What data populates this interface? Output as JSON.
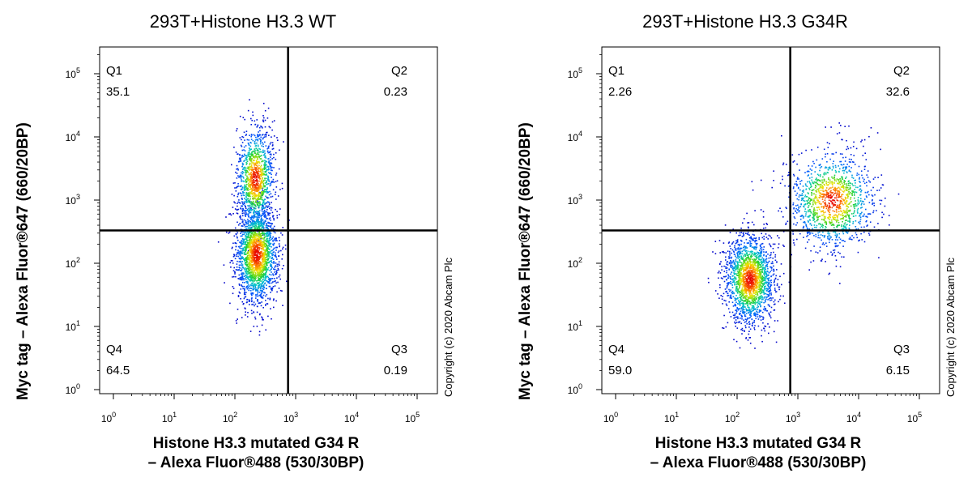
{
  "chart_data": [
    {
      "type": "scatter",
      "title": "293T+Histone H3.3 WT",
      "xlabel_line1": "Histone H3.3 mutated G34 R",
      "xlabel_line2": "– Alexa Fluor®488 (530/30BP)",
      "ylabel": "Myc tag – Alexa Fluor®647 (660/20BP)",
      "x_scale": "log",
      "y_scale": "log",
      "xlim": [
        1,
        300000
      ],
      "ylim": [
        1,
        300000
      ],
      "gate": {
        "x": 750,
        "y": 330
      },
      "quadrants": [
        {
          "label": "Q1",
          "value": "35.1",
          "position": "top-left"
        },
        {
          "label": "Q2",
          "value": "0.23",
          "position": "top-right"
        },
        {
          "label": "Q3",
          "value": "0.19",
          "position": "bottom-right"
        },
        {
          "label": "Q4",
          "value": "64.5",
          "position": "bottom-left"
        }
      ],
      "populations": [
        {
          "x_log_center": 2.35,
          "y_log_center": 2.15,
          "x_log_sd": 0.17,
          "y_log_sd": 0.38,
          "fraction": 0.64
        },
        {
          "x_log_center": 2.33,
          "y_log_center": 3.35,
          "x_log_sd": 0.15,
          "y_log_sd": 0.4,
          "fraction": 0.36
        }
      ],
      "copyright": "Copyright (c) 2020 Abcam Plc"
    },
    {
      "type": "scatter",
      "title": "293T+Histone H3.3 G34R",
      "xlabel_line1": "Histone H3.3 mutated G34 R",
      "xlabel_line2": "– Alexa Fluor®488 (530/30BP)",
      "ylabel": "Myc tag – Alexa Fluor®647 (660/20BP)",
      "x_scale": "log",
      "y_scale": "log",
      "xlim": [
        1,
        300000
      ],
      "ylim": [
        1,
        300000
      ],
      "gate": {
        "x": 750,
        "y": 330
      },
      "quadrants": [
        {
          "label": "Q1",
          "value": "2.26",
          "position": "top-left"
        },
        {
          "label": "Q2",
          "value": "32.6",
          "position": "top-right"
        },
        {
          "label": "Q3",
          "value": "6.15",
          "position": "bottom-right"
        },
        {
          "label": "Q4",
          "value": "59.0",
          "position": "bottom-left"
        }
      ],
      "populations": [
        {
          "x_log_center": 2.2,
          "y_log_center": 1.75,
          "x_log_sd": 0.2,
          "y_log_sd": 0.35,
          "fraction": 0.6
        },
        {
          "x_log_center": 3.55,
          "y_log_center": 3.0,
          "x_log_sd": 0.35,
          "y_log_sd": 0.38,
          "fraction": 0.4
        }
      ],
      "copyright": "Copyright (c) 2020 Abcam Plc"
    }
  ]
}
